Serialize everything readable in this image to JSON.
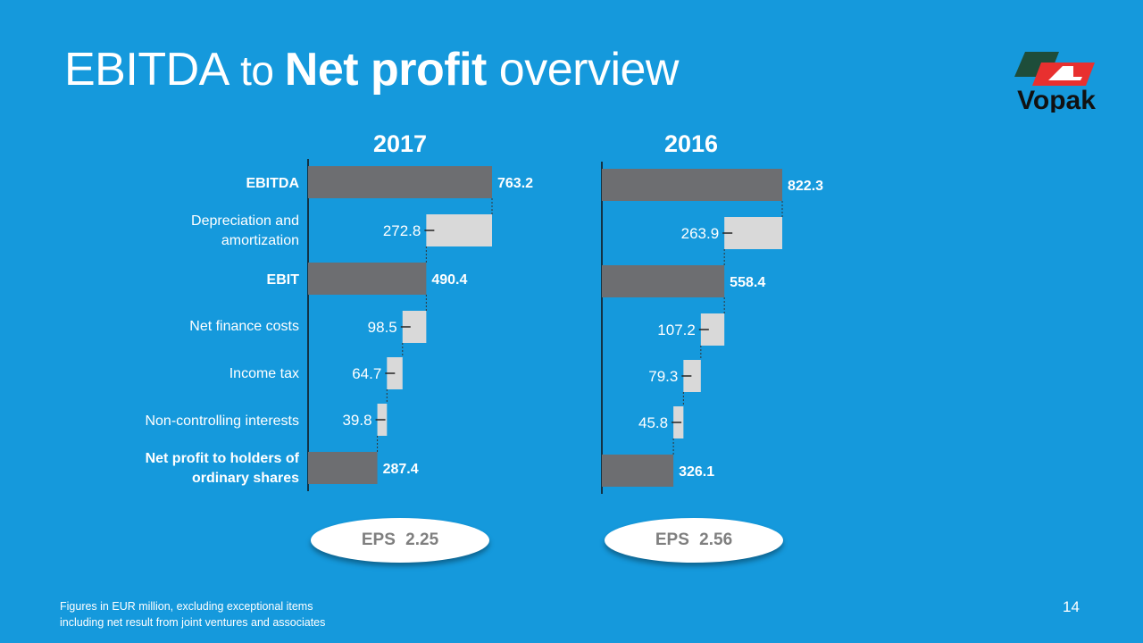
{
  "title": {
    "part1": "EBITDA",
    "part2": " to ",
    "part3": "Net profit",
    "part4": " overview"
  },
  "logo": {
    "text": "Vopak",
    "colors": [
      "#1e4d3a",
      "#e8302f"
    ]
  },
  "colors": {
    "background": "#1599dc",
    "total_bar": "#6d6e71",
    "deduction_bar": "#d9d9d9"
  },
  "chart_data": {
    "type": "bar",
    "subtype": "waterfall",
    "orientation": "horizontal",
    "categories": [
      "EBITDA",
      "Depreciation and amortization",
      "EBIT",
      "Net finance costs",
      "Income tax",
      "Non-controlling interests",
      "Net profit to holders of ordinary shares"
    ],
    "category_kinds": [
      "total",
      "deduction",
      "total",
      "deduction",
      "deduction",
      "deduction",
      "total"
    ],
    "series": [
      {
        "name": "2017",
        "values": [
          763.2,
          272.8,
          490.4,
          98.5,
          64.7,
          39.8,
          287.4
        ],
        "labels": [
          "763.2",
          "272.8",
          "490.4",
          "98.5",
          "64.7",
          "39.8",
          "287.4"
        ]
      },
      {
        "name": "2016",
        "values": [
          822.3,
          263.9,
          558.4,
          107.2,
          79.3,
          45.8,
          326.1
        ],
        "labels": [
          "822.3",
          "263.9",
          "558.4",
          "107.2",
          "79.3",
          "45.8",
          "326.1"
        ]
      }
    ]
  },
  "eps": [
    {
      "label": "EPS",
      "value": "2.25"
    },
    {
      "label": "EPS",
      "value": "2.56"
    }
  ],
  "footnote": {
    "line1": "Figures in EUR million, excluding exceptional items",
    "line2": "including net result from joint ventures and associates"
  },
  "page_number": "14"
}
